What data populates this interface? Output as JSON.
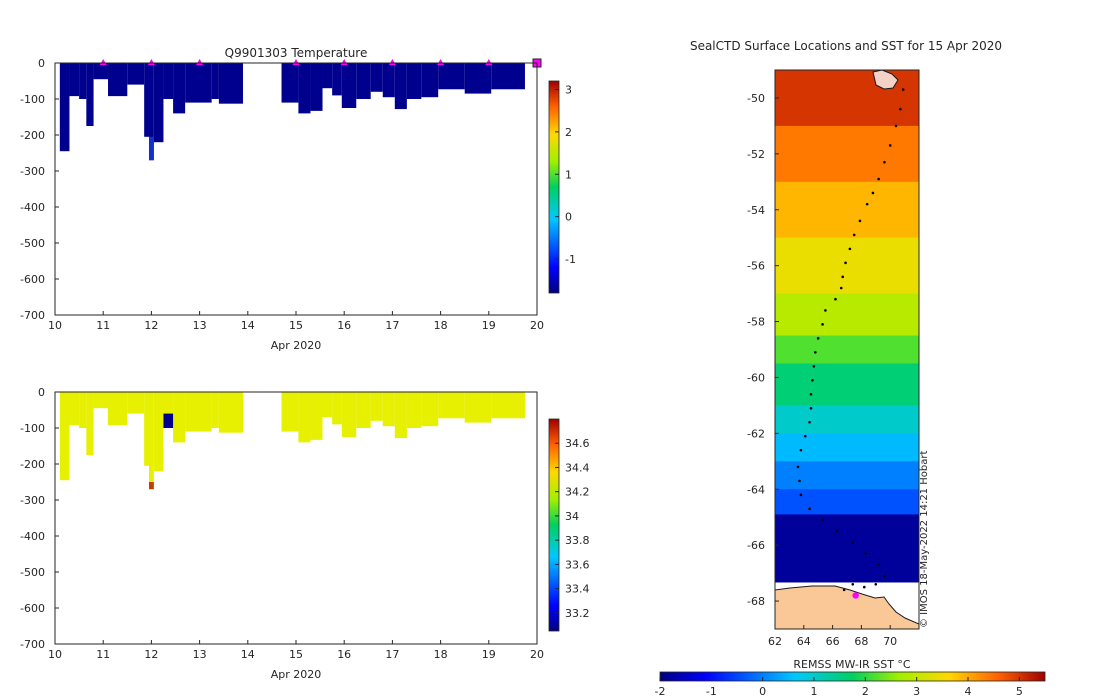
{
  "chart_data": [
    {
      "type": "heatmap",
      "title": "Q9901303  Temperature",
      "xlabel": "Apr 2020",
      "ylabel": "",
      "xlim": [
        10,
        20
      ],
      "ylim": [
        -700,
        0
      ],
      "xticks": [
        "10",
        "11",
        "12",
        "13",
        "14",
        "15",
        "16",
        "17",
        "18",
        "19",
        "20"
      ],
      "yticks": [
        "0",
        "-100",
        "-200",
        "-300",
        "-400",
        "-500",
        "-600",
        "-700"
      ],
      "colorbar": {
        "ticks": [
          "3",
          "2",
          "1",
          "0",
          "-1"
        ],
        "range": [
          -1.8,
          3.2
        ]
      },
      "fill_color": "#00008f",
      "surface_markers_x": [
        11,
        12,
        13,
        15,
        16,
        17,
        18,
        19
      ],
      "marker_color": "#ff00ff",
      "profiles": [
        {
          "x0": 10.1,
          "x1": 10.3,
          "depth": -245
        },
        {
          "x0": 10.3,
          "x1": 10.5,
          "depth": -92
        },
        {
          "x0": 10.5,
          "x1": 10.65,
          "depth": -100
        },
        {
          "x0": 10.65,
          "x1": 10.8,
          "depth": -175
        },
        {
          "x0": 10.8,
          "x1": 11.1,
          "depth": -45
        },
        {
          "x0": 11.1,
          "x1": 11.5,
          "depth": -92
        },
        {
          "x0": 11.5,
          "x1": 11.85,
          "depth": -60
        },
        {
          "x0": 11.85,
          "x1": 11.95,
          "depth": -205
        },
        {
          "x0": 11.95,
          "x1": 12.05,
          "depth": -270
        },
        {
          "x0": 12.05,
          "x1": 12.25,
          "depth": -220
        },
        {
          "x0": 12.25,
          "x1": 12.45,
          "depth": -100
        },
        {
          "x0": 12.45,
          "x1": 12.7,
          "depth": -140
        },
        {
          "x0": 12.7,
          "x1": 13.25,
          "depth": -110
        },
        {
          "x0": 13.25,
          "x1": 13.4,
          "depth": -100
        },
        {
          "x0": 13.4,
          "x1": 13.9,
          "depth": -113
        },
        {
          "x0": 14.7,
          "x1": 15.05,
          "depth": -110
        },
        {
          "x0": 15.05,
          "x1": 15.3,
          "depth": -140
        },
        {
          "x0": 15.3,
          "x1": 15.55,
          "depth": -133
        },
        {
          "x0": 15.55,
          "x1": 15.75,
          "depth": -70
        },
        {
          "x0": 15.75,
          "x1": 15.95,
          "depth": -90
        },
        {
          "x0": 15.95,
          "x1": 16.25,
          "depth": -125
        },
        {
          "x0": 16.25,
          "x1": 16.55,
          "depth": -100
        },
        {
          "x0": 16.55,
          "x1": 16.8,
          "depth": -80
        },
        {
          "x0": 16.8,
          "x1": 17.05,
          "depth": -95
        },
        {
          "x0": 17.05,
          "x1": 17.3,
          "depth": -128
        },
        {
          "x0": 17.3,
          "x1": 17.6,
          "depth": -100
        },
        {
          "x0": 17.6,
          "x1": 17.95,
          "depth": -95
        },
        {
          "x0": 17.95,
          "x1": 18.5,
          "depth": -73
        },
        {
          "x0": 18.5,
          "x1": 19.05,
          "depth": -85
        },
        {
          "x0": 19.05,
          "x1": 19.75,
          "depth": -73
        }
      ]
    },
    {
      "type": "heatmap",
      "title": "",
      "xlabel": "Apr 2020",
      "ylabel": "",
      "xlim": [
        10,
        20
      ],
      "ylim": [
        -700,
        0
      ],
      "xticks": [
        "10",
        "11",
        "12",
        "13",
        "14",
        "15",
        "16",
        "17",
        "18",
        "19",
        "20"
      ],
      "yticks": [
        "0",
        "-100",
        "-200",
        "-300",
        "-400",
        "-500",
        "-600",
        "-700"
      ],
      "colorbar": {
        "ticks": [
          "34.6",
          "34.4",
          "34.2",
          "34",
          "33.8",
          "33.6",
          "33.4",
          "33.2"
        ],
        "range": [
          33.05,
          34.8
        ]
      },
      "fill_color": "#e6f000",
      "profiles": [
        {
          "x0": 10.1,
          "x1": 10.3,
          "depth": -245
        },
        {
          "x0": 10.3,
          "x1": 10.5,
          "depth": -92
        },
        {
          "x0": 10.5,
          "x1": 10.65,
          "depth": -100
        },
        {
          "x0": 10.65,
          "x1": 10.8,
          "depth": -175
        },
        {
          "x0": 10.8,
          "x1": 11.1,
          "depth": -45
        },
        {
          "x0": 11.1,
          "x1": 11.5,
          "depth": -92
        },
        {
          "x0": 11.5,
          "x1": 11.85,
          "depth": -60
        },
        {
          "x0": 11.85,
          "x1": 11.95,
          "depth": -205
        },
        {
          "x0": 11.95,
          "x1": 12.05,
          "depth": -270
        },
        {
          "x0": 12.05,
          "x1": 12.25,
          "depth": -220
        },
        {
          "x0": 12.25,
          "x1": 12.45,
          "depth": -100
        },
        {
          "x0": 12.45,
          "x1": 12.7,
          "depth": -140
        },
        {
          "x0": 12.7,
          "x1": 13.25,
          "depth": -110
        },
        {
          "x0": 13.25,
          "x1": 13.4,
          "depth": -100
        },
        {
          "x0": 13.4,
          "x1": 13.9,
          "depth": -113
        },
        {
          "x0": 14.7,
          "x1": 15.05,
          "depth": -110
        },
        {
          "x0": 15.05,
          "x1": 15.3,
          "depth": -140
        },
        {
          "x0": 15.3,
          "x1": 15.55,
          "depth": -133
        },
        {
          "x0": 15.55,
          "x1": 15.75,
          "depth": -70
        },
        {
          "x0": 15.75,
          "x1": 15.95,
          "depth": -90
        },
        {
          "x0": 15.95,
          "x1": 16.25,
          "depth": -125
        },
        {
          "x0": 16.25,
          "x1": 16.55,
          "depth": -100
        },
        {
          "x0": 16.55,
          "x1": 16.8,
          "depth": -80
        },
        {
          "x0": 16.8,
          "x1": 17.05,
          "depth": -95
        },
        {
          "x0": 17.05,
          "x1": 17.3,
          "depth": -128
        },
        {
          "x0": 17.3,
          "x1": 17.6,
          "depth": -100
        },
        {
          "x0": 17.6,
          "x1": 17.95,
          "depth": -95
        },
        {
          "x0": 17.95,
          "x1": 18.5,
          "depth": -73
        },
        {
          "x0": 18.5,
          "x1": 19.05,
          "depth": -85
        },
        {
          "x0": 19.05,
          "x1": 19.75,
          "depth": -73
        }
      ]
    },
    {
      "type": "heatmap",
      "title": "SealCTD Surface Locations and SST for 15 Apr 2020",
      "xlabel": "",
      "ylabel": "",
      "xlim": [
        62,
        72
      ],
      "ylim": [
        -69,
        -49
      ],
      "xticks": [
        "62",
        "64",
        "66",
        "68",
        "70"
      ],
      "yticks": [
        "-50",
        "-52",
        "-54",
        "-56",
        "-58",
        "-60",
        "-62",
        "-64",
        "-66",
        "-68"
      ],
      "colorbar": {
        "label": "REMSS MW-IR SST °C",
        "ticks": [
          "-2",
          "-1",
          "0",
          "1",
          "2",
          "3",
          "4",
          "5"
        ],
        "range": [
          -2,
          5.5
        ]
      },
      "credit": "© IMOS 18-May-2022 14:21 Hobart",
      "sst_bands": [
        {
          "lat_top": -49,
          "lat_bot": -51,
          "sst": 5.0
        },
        {
          "lat_top": -51,
          "lat_bot": -53,
          "sst": 4.4
        },
        {
          "lat_top": -53,
          "lat_bot": -55,
          "sst": 3.9
        },
        {
          "lat_top": -55,
          "lat_bot": -57,
          "sst": 3.4
        },
        {
          "lat_top": -57,
          "lat_bot": -58.5,
          "sst": 2.9
        },
        {
          "lat_top": -58.5,
          "lat_bot": -59.5,
          "sst": 2.2
        },
        {
          "lat_top": -59.5,
          "lat_bot": -61,
          "sst": 1.6
        },
        {
          "lat_top": -61,
          "lat_bot": -62,
          "sst": 1.0
        },
        {
          "lat_top": -62,
          "lat_bot": -63,
          "sst": 0.5
        },
        {
          "lat_top": -63,
          "lat_bot": -64,
          "sst": 0.0
        },
        {
          "lat_top": -64,
          "lat_bot": -64.9,
          "sst": -0.4
        },
        {
          "lat_top": -64.9,
          "lat_bot": -67.3,
          "sst": -1.8
        }
      ],
      "land_color": "#f9c896",
      "track": [
        [
          70.9,
          -49.7
        ],
        [
          70.7,
          -50.4
        ],
        [
          70.4,
          -51.0
        ],
        [
          70.0,
          -51.7
        ],
        [
          69.6,
          -52.3
        ],
        [
          69.2,
          -52.9
        ],
        [
          68.8,
          -53.4
        ],
        [
          68.4,
          -53.8
        ],
        [
          67.9,
          -54.4
        ],
        [
          67.5,
          -54.9
        ],
        [
          67.2,
          -55.4
        ],
        [
          66.9,
          -55.9
        ],
        [
          66.7,
          -56.4
        ],
        [
          66.6,
          -56.8
        ],
        [
          66.2,
          -57.2
        ],
        [
          65.5,
          -57.6
        ],
        [
          65.3,
          -58.1
        ],
        [
          65.0,
          -58.6
        ],
        [
          64.8,
          -59.1
        ],
        [
          64.7,
          -59.6
        ],
        [
          64.6,
          -60.1
        ],
        [
          64.5,
          -60.6
        ],
        [
          64.5,
          -61.1
        ],
        [
          64.4,
          -61.6
        ],
        [
          64.1,
          -62.1
        ],
        [
          63.8,
          -62.6
        ],
        [
          63.6,
          -63.2
        ],
        [
          63.7,
          -63.7
        ],
        [
          63.8,
          -64.2
        ],
        [
          64.4,
          -64.7
        ],
        [
          65.3,
          -65.1
        ],
        [
          66.3,
          -65.5
        ],
        [
          67.4,
          -65.9
        ],
        [
          68.3,
          -66.3
        ],
        [
          69.2,
          -66.7
        ],
        [
          69.6,
          -67.1
        ],
        [
          69.0,
          -67.4
        ],
        [
          68.2,
          -67.5
        ],
        [
          67.4,
          -67.4
        ],
        [
          66.8,
          -67.6
        ]
      ],
      "current_location": [
        67.6,
        -67.8
      ]
    }
  ]
}
